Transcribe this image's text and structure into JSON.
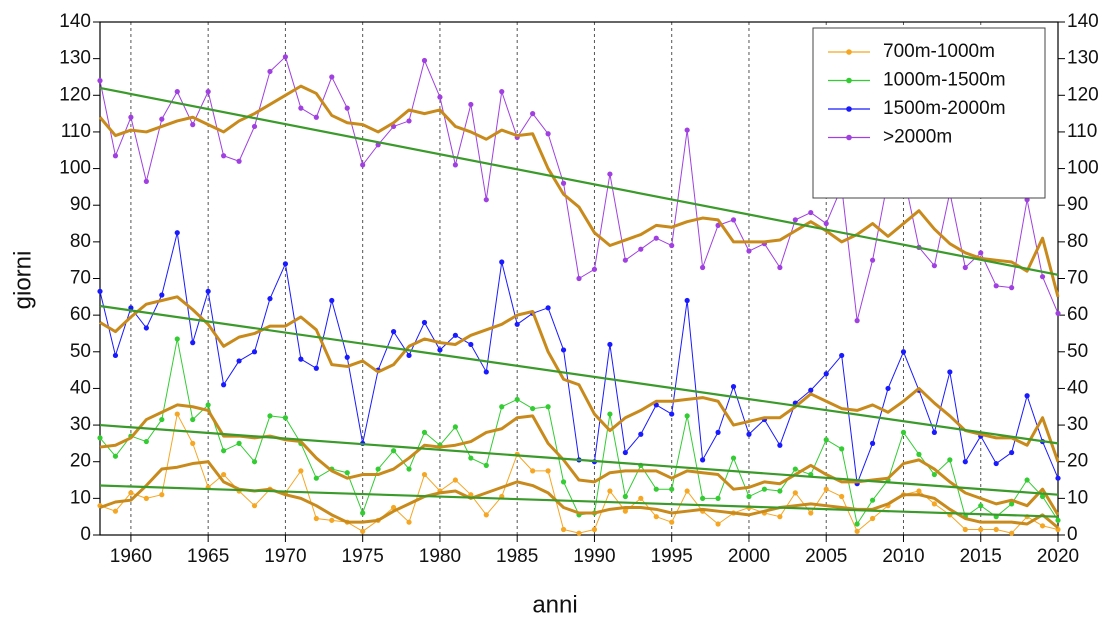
{
  "chart_data": {
    "type": "line",
    "x_label": "anni",
    "y_label": "giorni",
    "x": [
      1958,
      1959,
      1960,
      1961,
      1962,
      1963,
      1964,
      1965,
      1966,
      1967,
      1968,
      1969,
      1970,
      1971,
      1972,
      1973,
      1974,
      1975,
      1976,
      1977,
      1978,
      1979,
      1980,
      1981,
      1982,
      1983,
      1984,
      1985,
      1986,
      1987,
      1988,
      1989,
      1990,
      1991,
      1992,
      1993,
      1994,
      1995,
      1996,
      1997,
      1998,
      1999,
      2000,
      2001,
      2002,
      2003,
      2004,
      2005,
      2006,
      2007,
      2008,
      2009,
      2010,
      2011,
      2012,
      2013,
      2014,
      2015,
      2016,
      2017,
      2018,
      2019,
      2020
    ],
    "xlim": [
      1958,
      2020
    ],
    "xticks": [
      1960,
      1965,
      1970,
      1975,
      1980,
      1985,
      1990,
      1995,
      2000,
      2005,
      2010,
      2015,
      2020
    ],
    "ylim": [
      0,
      140
    ],
    "yticks": [
      0,
      10,
      20,
      30,
      40,
      50,
      60,
      70,
      80,
      90,
      100,
      110,
      120,
      130,
      140
    ],
    "y2lim": [
      0,
      140
    ],
    "y2ticks": [
      0,
      10,
      20,
      30,
      40,
      50,
      60,
      70,
      80,
      90,
      100,
      110,
      120,
      130,
      140
    ],
    "grid": true,
    "legend": "upper right",
    "moving_average_color": "#c98a1c",
    "trend_color": "#3a9a2a",
    "series": [
      {
        "name": "700m-1000m",
        "color": "#f5a623",
        "values": [
          8,
          6.5,
          11.5,
          10,
          11,
          33,
          25,
          13,
          16.5,
          12,
          8,
          12.5,
          11.5,
          17.5,
          4.5,
          4,
          3.5,
          1,
          4,
          7.5,
          3.5,
          16.5,
          12,
          15,
          11,
          5.5,
          10.5,
          22,
          17.5,
          17.5,
          1.5,
          0.5,
          1.5,
          12,
          6.5,
          10,
          5,
          3.5,
          12,
          6.5,
          3,
          6,
          7.5,
          6,
          5,
          11.5,
          6,
          12.5,
          10.5,
          1,
          4.5,
          8,
          11,
          12,
          8.5,
          5.5,
          1.5,
          1.5,
          1.5,
          0.5,
          5,
          2.5,
          1.5
        ],
        "moving_average": [
          7.5,
          9,
          9.5,
          13.5,
          18,
          18.5,
          19.5,
          20,
          14.5,
          12.5,
          12,
          12.5,
          11,
          10,
          8,
          5.5,
          3.5,
          3.5,
          4,
          6.5,
          8.5,
          10.5,
          11.5,
          12,
          10,
          11.5,
          13,
          14.5,
          13.5,
          11.5,
          7.5,
          6,
          6,
          7,
          7.5,
          7.5,
          7,
          6,
          6.5,
          7,
          6.5,
          6,
          5.5,
          6.5,
          7.5,
          8,
          8.5,
          8,
          7.5,
          7,
          7,
          8.5,
          11,
          11,
          10,
          7,
          4.5,
          3.5,
          3.5,
          3.5,
          3,
          5.5,
          2
        ],
        "trend": [
          13.5,
          5
        ]
      },
      {
        "name": "1000m-1500m",
        "color": "#33cc33",
        "values": [
          26.5,
          21.5,
          27,
          25.5,
          31.5,
          53.5,
          31.5,
          35.5,
          23,
          25,
          20,
          32.5,
          32,
          25,
          15.5,
          18,
          17,
          6,
          18,
          23,
          18,
          28,
          24.5,
          29.5,
          21,
          19,
          35,
          37,
          34.5,
          35,
          14.5,
          5.5,
          6,
          33,
          10.5,
          19,
          12.5,
          12.5,
          32.5,
          10,
          10,
          21,
          10.5,
          12.5,
          12,
          18,
          16.5,
          26,
          23.5,
          3,
          9.5,
          15,
          28,
          22,
          16.5,
          20.5,
          5,
          8,
          5,
          8.5,
          15,
          10.5,
          4
        ],
        "moving_average": [
          24,
          24.5,
          26.5,
          31.5,
          33.5,
          35.5,
          35,
          34,
          27,
          27,
          26.5,
          27,
          26,
          25.5,
          21,
          17.5,
          15.5,
          16.5,
          16.5,
          18,
          21,
          24.5,
          24,
          24.5,
          25.5,
          28,
          29,
          32,
          32.5,
          25,
          20.5,
          15,
          14.5,
          17,
          17.5,
          17.5,
          17.5,
          15.5,
          17.5,
          17,
          16.5,
          12.5,
          13,
          14.5,
          14,
          16.5,
          19,
          16.5,
          14.5,
          14.5,
          15,
          15.5,
          19.5,
          20.5,
          18,
          14.5,
          11.5,
          10,
          8.5,
          9.5,
          8,
          12.5,
          5.5
        ],
        "trend": [
          30,
          11
        ]
      },
      {
        "name": "1500m-2000m",
        "color": "#1a1aff",
        "values": [
          66.5,
          49,
          62,
          56.5,
          65.5,
          82.5,
          52.5,
          66.5,
          41,
          47.5,
          50,
          64.5,
          74,
          48,
          45.5,
          64,
          48.5,
          25,
          45,
          55.5,
          49,
          58,
          50.5,
          54.5,
          52,
          44.5,
          74.5,
          57.5,
          60.5,
          62,
          50.5,
          20.5,
          20,
          52,
          22.5,
          27.5,
          35.5,
          33,
          64,
          20.5,
          28,
          40.5,
          27.5,
          31.5,
          24.5,
          36,
          39.5,
          44,
          49,
          14,
          25,
          40,
          50,
          39.5,
          28,
          44.5,
          20,
          27,
          19.5,
          22.5,
          38,
          25.5,
          15.5
        ],
        "moving_average": [
          58,
          55.5,
          59.5,
          63,
          64,
          65,
          61.5,
          57.5,
          51.5,
          54,
          55,
          57,
          57,
          59.5,
          56,
          46.5,
          46,
          47.5,
          44.5,
          46.5,
          51.5,
          53.5,
          52.5,
          52,
          54.5,
          56,
          57.5,
          60,
          61,
          50,
          42.5,
          41,
          33,
          28.5,
          32,
          34,
          36.5,
          36.5,
          37,
          37.5,
          36.5,
          30,
          31,
          32,
          32,
          35,
          38.5,
          36.5,
          34.5,
          34,
          35.5,
          33.5,
          36.5,
          40,
          36,
          32.5,
          28.5,
          27.5,
          26.5,
          26.5,
          24.5,
          32,
          20
        ],
        "trend": [
          62.5,
          25
        ]
      },
      {
        "name": ">2000m",
        "color": "#a040e0",
        "values": [
          124,
          103.5,
          114,
          96.5,
          113.5,
          121,
          112,
          121,
          103.5,
          102,
          111.5,
          126.5,
          130.5,
          116.5,
          114,
          125,
          116.5,
          101,
          106.5,
          111.5,
          113,
          129.5,
          119.5,
          101,
          117.5,
          91.5,
          121,
          108.5,
          115,
          109.5,
          96,
          70,
          72.5,
          98.5,
          75,
          78,
          81,
          79,
          110.5,
          73,
          84.5,
          86,
          77.5,
          79.5,
          73,
          86,
          88,
          85,
          95,
          58.5,
          75,
          97,
          98.5,
          78.5,
          73.5,
          93.5,
          73,
          77,
          68,
          67.5,
          91.5,
          70.5,
          60.5
        ],
        "moving_average": [
          114,
          109,
          110.5,
          110,
          111.5,
          113,
          114,
          112,
          110,
          113,
          115,
          117.5,
          120,
          122.5,
          120.5,
          114.5,
          112.5,
          112,
          110,
          112.5,
          116,
          115,
          116,
          111.5,
          110,
          108,
          110.5,
          109,
          109.5,
          100,
          93,
          89.5,
          82.5,
          79,
          80.5,
          82,
          84.5,
          84,
          85.5,
          86.5,
          86,
          80,
          80,
          80,
          80.5,
          83,
          85.5,
          83,
          80,
          82,
          85,
          81.5,
          85,
          88.5,
          83.5,
          79.5,
          77,
          75.5,
          75,
          74.5,
          72,
          81,
          65
        ],
        "trend": [
          122,
          71
        ]
      }
    ]
  }
}
